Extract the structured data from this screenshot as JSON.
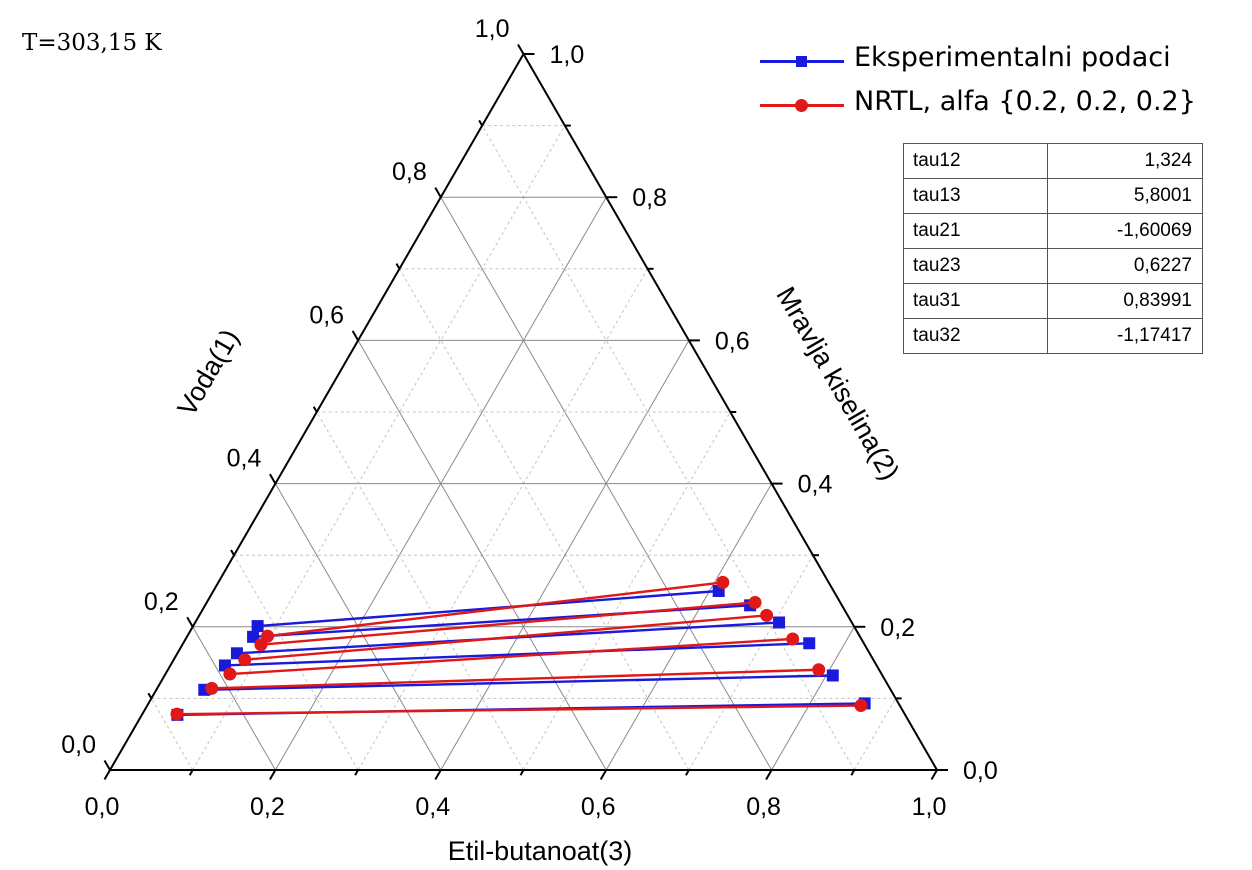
{
  "chart_data": {
    "type": "scatter",
    "subtype": "ternary",
    "annotation": "T=303,15 K",
    "axes": {
      "a": {
        "label": "Voda(1)",
        "ticks": [
          "0,0",
          "0,2",
          "0,4",
          "0,6",
          "0,8",
          "1,0"
        ],
        "range": [
          0,
          1
        ]
      },
      "b": {
        "label": "Mravlja kiselina(2)",
        "ticks": [
          "0,0",
          "0,2",
          "0,4",
          "0,6",
          "0,8",
          "1,0"
        ],
        "range": [
          0,
          1
        ]
      },
      "c": {
        "label": "Etil-butanoat(3)",
        "ticks": [
          "0,0",
          "0,2",
          "0,4",
          "0,6",
          "0,8",
          "1,0"
        ],
        "range": [
          0,
          1
        ]
      }
    },
    "grid": true,
    "legend_position": "top-right",
    "series": [
      {
        "name": "Eksperimentalni podaci",
        "color": "#1a1adc",
        "marker": "square",
        "tie_lines": [
          [
            {
              "x2": 0.201,
              "x3": 0.078
            },
            {
              "x2": 0.25,
              "x3": 0.611
            }
          ],
          [
            {
              "x2": 0.186,
              "x3": 0.08
            },
            {
              "x2": 0.23,
              "x3": 0.659
            }
          ],
          [
            {
              "x2": 0.163,
              "x3": 0.072
            },
            {
              "x2": 0.206,
              "x3": 0.706
            }
          ],
          [
            {
              "x2": 0.146,
              "x3": 0.066
            },
            {
              "x2": 0.177,
              "x3": 0.757
            }
          ],
          [
            {
              "x2": 0.112,
              "x3": 0.058
            },
            {
              "x2": 0.132,
              "x3": 0.808
            }
          ],
          [
            {
              "x2": 0.077,
              "x3": 0.043
            },
            {
              "x2": 0.093,
              "x3": 0.866
            }
          ]
        ]
      },
      {
        "name": "NRTL, alfa {0.2, 0.2, 0.2}",
        "color": "#e01818",
        "marker": "circle",
        "tie_lines": [
          [
            {
              "x2": 0.187,
              "x3": 0.097
            },
            {
              "x2": 0.262,
              "x3": 0.61
            }
          ],
          [
            {
              "x2": 0.175,
              "x3": 0.095
            },
            {
              "x2": 0.234,
              "x3": 0.663
            }
          ],
          [
            {
              "x2": 0.154,
              "x3": 0.086
            },
            {
              "x2": 0.216,
              "x3": 0.686
            }
          ],
          [
            {
              "x2": 0.134,
              "x3": 0.078
            },
            {
              "x2": 0.183,
              "x3": 0.734
            }
          ],
          [
            {
              "x2": 0.114,
              "x3": 0.066
            },
            {
              "x2": 0.14,
              "x3": 0.787
            }
          ],
          [
            {
              "x2": 0.078,
              "x3": 0.042
            },
            {
              "x2": 0.09,
              "x3": 0.863
            }
          ]
        ]
      }
    ]
  },
  "legend": {
    "items": [
      {
        "label": "Eksperimentalni podaci",
        "color": "#1a1adc",
        "marker": "square"
      },
      {
        "label": "NRTL, alfa {0.2, 0.2, 0.2}",
        "color": "#e01818",
        "marker": "circle"
      }
    ]
  },
  "params": [
    {
      "name": "tau12",
      "value": "1,324"
    },
    {
      "name": "tau13",
      "value": "5,8001"
    },
    {
      "name": "tau21",
      "value": "-1,60069"
    },
    {
      "name": "tau23",
      "value": "0,6227"
    },
    {
      "name": "tau31",
      "value": "0,83991"
    },
    {
      "name": "tau32",
      "value": "-1,17417"
    }
  ]
}
